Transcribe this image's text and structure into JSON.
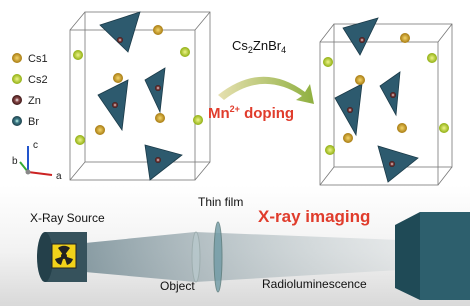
{
  "legend": [
    {
      "label": "Cs1"
    },
    {
      "label": "Cs2"
    },
    {
      "label": "Zn"
    },
    {
      "label": "Br"
    }
  ],
  "formula": {
    "parts": [
      "Cs",
      "2",
      "ZnBr",
      "4"
    ]
  },
  "doping": {
    "ion": "Mn",
    "charge": "2+",
    "text": " doping"
  },
  "axes": {
    "c": "c",
    "b": "b",
    "a": "a"
  },
  "labels": {
    "source": "X-Ray Source",
    "film": "Thin film",
    "imaging": "X-ray imaging",
    "object": "Object",
    "radio": "Radioluminescence"
  }
}
